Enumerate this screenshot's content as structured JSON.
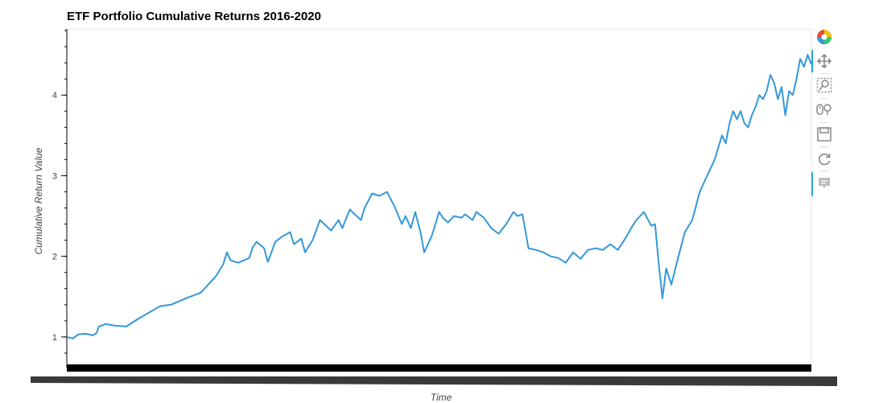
{
  "title": "ETF Portfolio Cumulative Returns 2016-2020",
  "toolbar": {
    "tools": [
      "bokeh-logo-icon",
      "pan-icon",
      "box-zoom-icon",
      "wheel-zoom-icon",
      "save-icon",
      "reset-icon",
      "hover-icon"
    ]
  },
  "colors": {
    "line": "#3498db",
    "axis": "#000000",
    "toolbar_active": "#26aae1"
  },
  "chart_data": {
    "type": "line",
    "title": "ETF Portfolio Cumulative Returns 2016-2020",
    "xlabel": "Time",
    "ylabel": "Cumulative Return Value",
    "ylim": [
      0.62,
      4.82
    ],
    "yticks": [
      1,
      2,
      3,
      4
    ],
    "ytick_labels": [
      "1",
      "2",
      "3",
      "4"
    ],
    "xlim": [
      0,
      1
    ],
    "grid": false,
    "legend": "none",
    "series": [
      {
        "x": [
          0.0,
          0.008,
          0.015,
          0.025,
          0.035,
          0.04,
          0.043,
          0.052,
          0.065,
          0.08,
          0.095,
          0.11,
          0.125,
          0.14,
          0.16,
          0.18,
          0.2,
          0.21,
          0.215,
          0.22,
          0.23,
          0.245,
          0.25,
          0.255,
          0.265,
          0.27,
          0.28,
          0.29,
          0.3,
          0.305,
          0.315,
          0.32,
          0.33,
          0.34,
          0.355,
          0.365,
          0.37,
          0.38,
          0.395,
          0.4,
          0.41,
          0.42,
          0.43,
          0.44,
          0.45,
          0.455,
          0.462,
          0.468,
          0.475,
          0.48,
          0.49,
          0.5,
          0.505,
          0.512,
          0.52,
          0.53,
          0.535,
          0.545,
          0.55,
          0.56,
          0.57,
          0.58,
          0.59,
          0.6,
          0.605,
          0.612,
          0.62,
          0.63,
          0.64,
          0.65,
          0.66,
          0.67,
          0.68,
          0.69,
          0.7,
          0.71,
          0.72,
          0.73,
          0.74,
          0.75,
          0.758,
          0.765,
          0.775,
          0.785,
          0.79,
          0.795,
          0.8,
          0.805,
          0.812,
          0.82,
          0.83,
          0.84,
          0.85,
          0.86,
          0.87,
          0.88,
          0.885,
          0.89,
          0.895,
          0.9,
          0.905,
          0.91,
          0.915,
          0.92,
          0.925,
          0.93,
          0.935,
          0.94,
          0.945,
          0.95,
          0.955,
          0.96,
          0.965,
          0.97,
          0.975,
          0.98,
          0.985,
          0.99,
          0.995,
          1.0
        ],
        "values": [
          1.0,
          0.98,
          1.03,
          1.04,
          1.02,
          1.05,
          1.13,
          1.16,
          1.14,
          1.13,
          1.22,
          1.3,
          1.38,
          1.4,
          1.48,
          1.55,
          1.75,
          1.9,
          2.05,
          1.95,
          1.92,
          1.98,
          2.12,
          2.18,
          2.1,
          1.93,
          2.18,
          2.25,
          2.3,
          2.15,
          2.22,
          2.05,
          2.2,
          2.45,
          2.32,
          2.45,
          2.35,
          2.58,
          2.45,
          2.6,
          2.78,
          2.75,
          2.8,
          2.62,
          2.4,
          2.5,
          2.35,
          2.55,
          2.3,
          2.05,
          2.25,
          2.55,
          2.48,
          2.42,
          2.5,
          2.48,
          2.52,
          2.45,
          2.55,
          2.48,
          2.35,
          2.28,
          2.4,
          2.55,
          2.5,
          2.52,
          2.1,
          2.08,
          2.05,
          2.0,
          1.98,
          1.92,
          2.05,
          1.97,
          2.08,
          2.1,
          2.08,
          2.15,
          2.08,
          2.22,
          2.35,
          2.45,
          2.55,
          2.38,
          2.4,
          1.9,
          1.48,
          1.85,
          1.65,
          1.95,
          2.3,
          2.45,
          2.8,
          3.0,
          3.2,
          3.5,
          3.4,
          3.65,
          3.8,
          3.7,
          3.8,
          3.65,
          3.6,
          3.75,
          3.85,
          4.0,
          3.95,
          4.05,
          4.25,
          4.15,
          3.95,
          4.1,
          3.75,
          4.05,
          4.0,
          4.2,
          4.45,
          4.35,
          4.5,
          4.38
        ]
      }
    ]
  }
}
